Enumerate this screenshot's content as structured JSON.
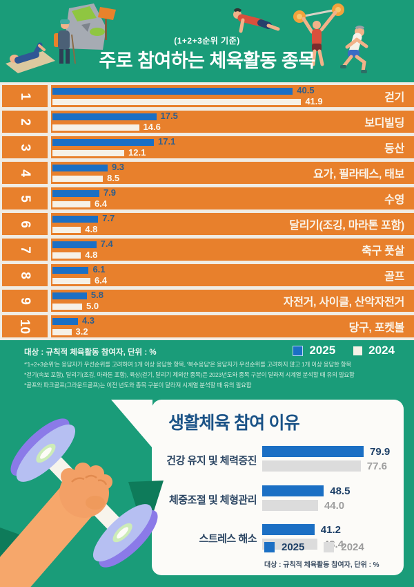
{
  "colors": {
    "background_green": "#1a9c79",
    "accent_dark_green": "#0e7b5a",
    "row_orange": "#e8802c",
    "bar_blue_2025": "#1b6fc4",
    "bar_offwhite_2024": "#f6f1e7",
    "bar_gray_2024": "#dcdcdc",
    "value_blue_text": "#2e5e8c",
    "navy_text": "#1d3f66",
    "card_title_blue": "#1a5286"
  },
  "header": {
    "subtitle": "(1+2+3순위 기준)",
    "title": "주로 참여하는 체육활동 종목",
    "illustrations": [
      "yoga-mat-person",
      "hiker-with-mountain",
      "push-up-person",
      "weightlifter",
      "runner"
    ]
  },
  "top_chart": {
    "unit_note": "대상 : 규칙적 체육활동 참여자, 단위 : %",
    "legend": [
      {
        "label": "2025",
        "color": "#1b6fc4"
      },
      {
        "label": "2024",
        "color": "#f6f1e7"
      }
    ],
    "items": [
      {
        "rank": "1",
        "label": "걷기",
        "v2025": 40.5,
        "v2024": 41.9
      },
      {
        "rank": "2",
        "label": "보디빌딩",
        "v2025": 17.5,
        "v2024": 14.6
      },
      {
        "rank": "3",
        "label": "등산",
        "v2025": 17.1,
        "v2024": 12.1
      },
      {
        "rank": "4",
        "label": "요가, 필라테스, 태보",
        "v2025": 9.3,
        "v2024": 8.5
      },
      {
        "rank": "5",
        "label": "수영",
        "v2025": 7.9,
        "v2024": 6.4
      },
      {
        "rank": "6",
        "label": "달리기(조깅, 마라톤 포함)",
        "v2025": 7.7,
        "v2024": 4.8
      },
      {
        "rank": "7",
        "label": "축구 풋살",
        "v2025": 7.4,
        "v2024": 4.8
      },
      {
        "rank": "8",
        "label": "골프",
        "v2025": 6.1,
        "v2024": 6.4
      },
      {
        "rank": "9",
        "label": "자전거, 사이클, 산악자전거",
        "v2025": 5.8,
        "v2024": 5.0
      },
      {
        "rank": "10",
        "label": "당구, 포켓볼",
        "v2025": 4.3,
        "v2024": 3.2
      }
    ]
  },
  "footnotes": [
    "*'1+2+3순위'는 응답자가 우선순위를 고려하여 1개 이상 응답한 항목, '복수응답'은 응답자가 우선순위를 고려하지 않고 1개 이상 응답한 항목",
    "*걷기(속보 포함), 달리기(조깅, 마라톤 포함), 육상(걷기, 달리기 제외한 종목)은 2023년도와 종목 구분이 달라져 시계열 분석할 때 유의 필요함",
    "*골프와 파크골프(그라운드골프)는 이전 년도와 종목 구분이 달라져 시계열 분석할 때 유의 필요함"
  ],
  "bottom_chart": {
    "title": "생활체육 참여 이유",
    "items": [
      {
        "label": "건강 유지 및 체력증진",
        "v2025": 79.9,
        "v2024": 77.6
      },
      {
        "label": "체중조절 및 체형관리",
        "v2025": 48.5,
        "v2024": 44.0
      },
      {
        "label": "스트레스 해소",
        "v2025": 41.2,
        "v2024": 43.4
      }
    ],
    "legend": [
      {
        "label": "2025",
        "color": "#1b6fc4"
      },
      {
        "label": "2024",
        "color": "#dcdcdc"
      }
    ],
    "caption": "대상 : 규칙적 체육활동 참여자, 단위 : %"
  },
  "chart_data": [
    {
      "type": "bar",
      "orientation": "horizontal",
      "title": "주로 참여하는 체육활동 종목",
      "subtitle": "(1+2+3순위 기준)",
      "unit": "%",
      "population_note": "대상 : 규칙적 체육활동 참여자, 단위 : %",
      "ranks": [
        1,
        2,
        3,
        4,
        5,
        6,
        7,
        8,
        9,
        10
      ],
      "categories": [
        "걷기",
        "보디빌딩",
        "등산",
        "요가, 필라테스, 태보",
        "수영",
        "달리기(조깅, 마라톤 포함)",
        "축구 풋살",
        "골프",
        "자전거, 사이클, 산악자전거",
        "당구, 포켓볼"
      ],
      "series": [
        {
          "name": "2025",
          "values": [
            40.5,
            17.5,
            17.1,
            9.3,
            7.9,
            7.7,
            7.4,
            6.1,
            5.8,
            4.3
          ]
        },
        {
          "name": "2024",
          "values": [
            41.9,
            14.6,
            12.1,
            8.5,
            6.4,
            4.8,
            4.8,
            6.4,
            5.0,
            3.2
          ]
        }
      ],
      "legend_position": "top-right-of-notes",
      "grid": false
    },
    {
      "type": "bar",
      "orientation": "horizontal",
      "title": "생활체육 참여 이유",
      "unit": "%",
      "population_note": "대상 : 규칙적 체육활동 참여자, 단위 : %",
      "categories": [
        "건강 유지 및 체력증진",
        "체중조절 및 체형관리",
        "스트레스 해소"
      ],
      "series": [
        {
          "name": "2025",
          "values": [
            79.9,
            48.5,
            41.2
          ]
        },
        {
          "name": "2024",
          "values": [
            77.6,
            44.0,
            43.4
          ]
        }
      ],
      "legend_position": "bottom",
      "grid": false
    }
  ]
}
